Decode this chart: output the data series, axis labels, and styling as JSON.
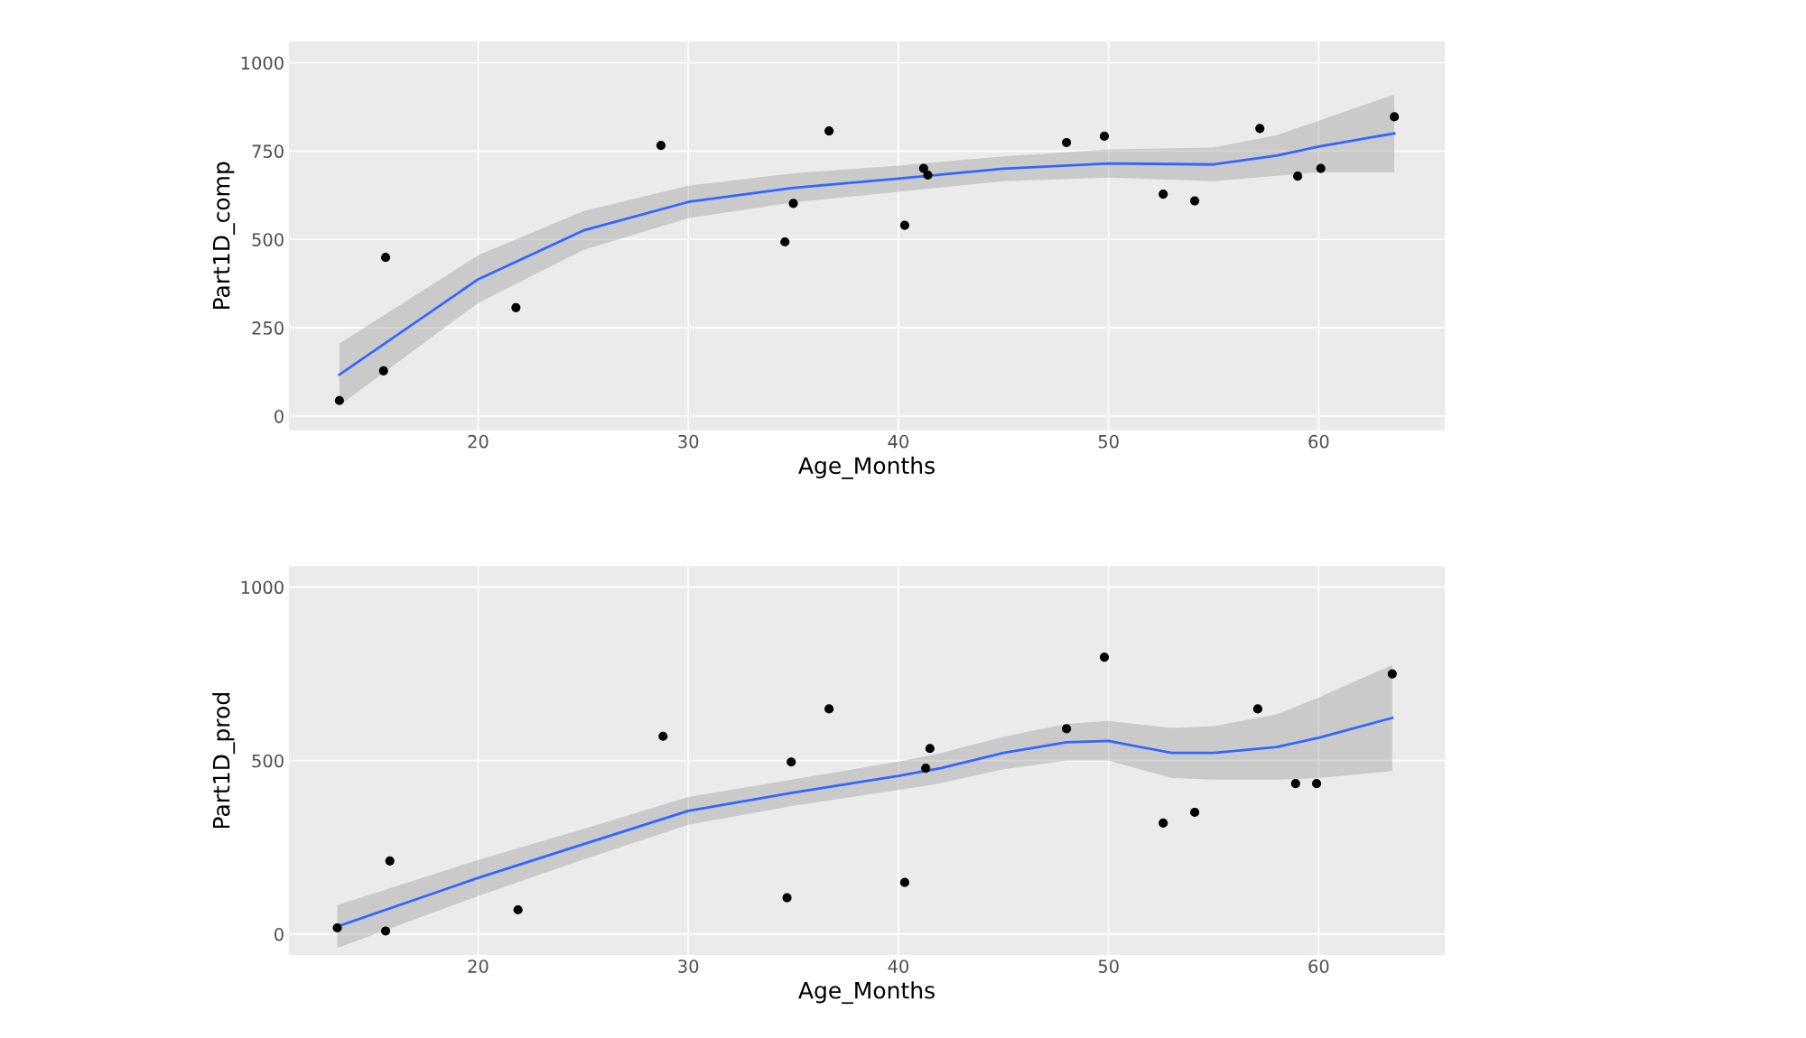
{
  "chart_data": [
    {
      "type": "scatter",
      "xlabel": "Age_Months",
      "ylabel": "Part1D_comp",
      "xlim": [
        11,
        66
      ],
      "ylim": [
        -40,
        1060
      ],
      "xticks": [
        20,
        30,
        40,
        50,
        60
      ],
      "yticks": [
        0,
        250,
        500,
        750,
        1000
      ],
      "grid": true,
      "series": [
        {
          "marker": "circle",
          "color": "#000000",
          "x": [
            13.4,
            15.6,
            15.5,
            21.8,
            28.7,
            34.6,
            35.0,
            36.7,
            40.3,
            41.2,
            41.4,
            48.0,
            49.8,
            52.6,
            54.1,
            57.2,
            59.0,
            60.1,
            63.6
          ],
          "values": [
            44,
            449,
            128,
            307,
            766,
            493,
            602,
            807,
            540,
            701,
            682,
            774,
            792,
            628,
            609,
            814,
            679,
            701,
            847
          ]
        },
        {
          "type": "line",
          "color": "#3366ff",
          "x": [
            13.4,
            20,
            25,
            30,
            35,
            40,
            45,
            50,
            55,
            58,
            60,
            63.6
          ],
          "values": [
            117,
            387,
            525,
            606,
            646,
            672,
            700,
            715,
            712,
            737,
            763,
            800
          ],
          "lower": [
            30,
            320,
            470,
            560,
            605,
            635,
            665,
            675,
            665,
            680,
            690,
            690
          ],
          "upper": [
            205,
            455,
            580,
            652,
            687,
            709,
            735,
            755,
            760,
            795,
            836,
            910
          ]
        }
      ]
    },
    {
      "type": "scatter",
      "xlabel": "Age_Months",
      "ylabel": "Part1D_prod",
      "xlim": [
        11,
        66
      ],
      "ylim": [
        -60,
        1060
      ],
      "xticks": [
        20,
        30,
        40,
        50,
        60
      ],
      "yticks": [
        0,
        500,
        1000
      ],
      "grid": true,
      "series": [
        {
          "marker": "circle",
          "color": "#000000",
          "x": [
            13.3,
            15.8,
            15.6,
            21.9,
            28.8,
            34.9,
            34.7,
            36.7,
            40.3,
            41.5,
            41.3,
            48.0,
            49.8,
            52.6,
            54.1,
            57.1,
            58.9,
            59.9,
            63.5
          ],
          "values": [
            18,
            211,
            9,
            70,
            570,
            496,
            105,
            649,
            149,
            535,
            478,
            592,
            798,
            320,
            351,
            649,
            434,
            434,
            750
          ]
        },
        {
          "type": "line",
          "color": "#3366ff",
          "x": [
            13.3,
            20,
            25,
            30,
            35,
            40,
            42,
            45,
            48,
            50,
            53,
            55,
            58,
            60,
            63.5
          ],
          "values": [
            22,
            162,
            259,
            355,
            408,
            456,
            478,
            522,
            553,
            557,
            522,
            522,
            539,
            566,
            623
          ],
          "lower": [
            -40,
            110,
            215,
            315,
            370,
            415,
            435,
            475,
            500,
            500,
            450,
            445,
            445,
            450,
            470
          ],
          "upper": [
            84,
            214,
            303,
            395,
            446,
            497,
            521,
            569,
            606,
            614,
            594,
            599,
            633,
            682,
            776
          ]
        }
      ]
    }
  ]
}
